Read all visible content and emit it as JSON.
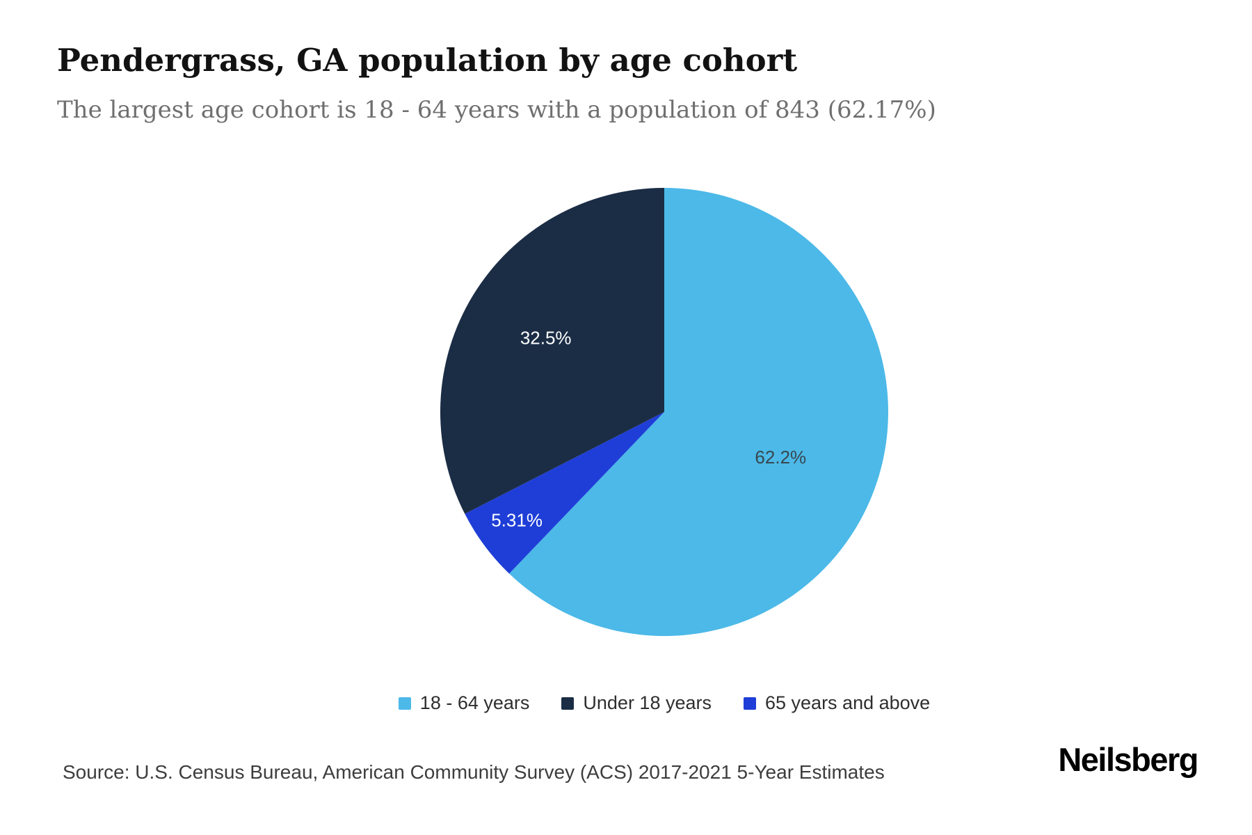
{
  "header": {
    "title": "Pendergrass, GA population by age cohort",
    "subtitle": "The largest age cohort is 18 - 64 years with a population of 843 (62.17%)"
  },
  "chart_data": {
    "type": "pie",
    "title": "Pendergrass, GA population by age cohort",
    "start_angle_deg": 0,
    "direction": "clockwise",
    "slices": [
      {
        "label": "18 - 64 years",
        "value_pct": 62.17,
        "display_pct": "62.2%",
        "population": 843,
        "color": "#4cb9e8",
        "label_color": "#37474f",
        "label_radius": 0.56
      },
      {
        "label": "65 years and above",
        "value_pct": 5.31,
        "display_pct": "5.31%",
        "color": "#1f3ed7",
        "label_color": "#ffffff",
        "label_radius": 0.82
      },
      {
        "label": "Under 18 years",
        "value_pct": 32.52,
        "display_pct": "32.5%",
        "color": "#1b2d45",
        "label_color": "#ffffff",
        "label_radius": 0.62
      }
    ],
    "legend_order": [
      0,
      2,
      1
    ],
    "legend_position": "bottom"
  },
  "footer": {
    "source": "Source: U.S. Census Bureau, American Community Survey (ACS) 2017-2021 5-Year Estimates",
    "brand": "Neilsberg"
  }
}
